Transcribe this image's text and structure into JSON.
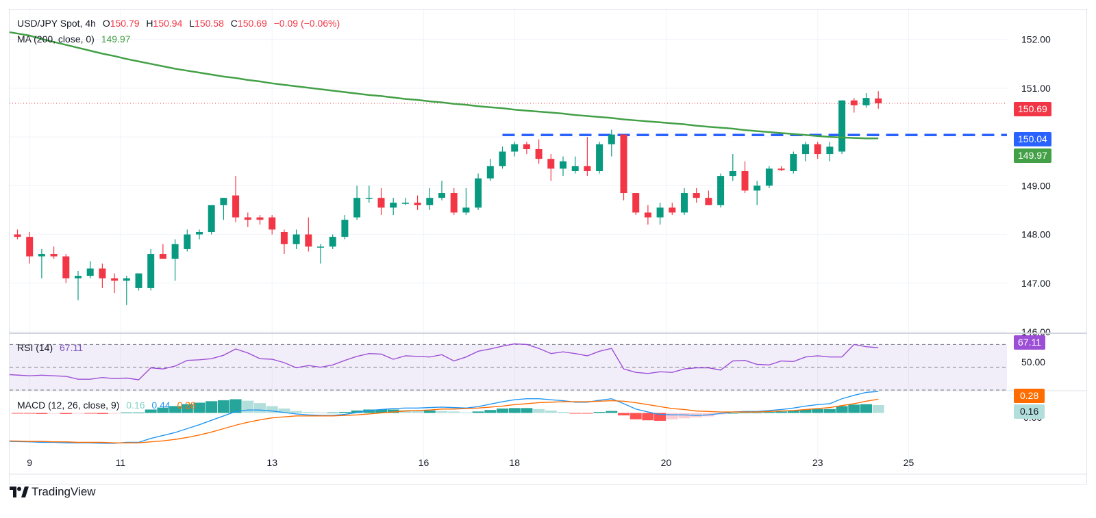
{
  "header": {
    "symbol": "USD/JPY Spot, 4h",
    "o_label": "O",
    "o_value": "150.79",
    "h_label": "H",
    "h_value": "150.94",
    "l_label": "L",
    "l_value": "150.58",
    "c_label": "C",
    "c_value": "150.69",
    "change": "−0.09 (−0.06%)",
    "ma_label": "MA (200, close, 0)",
    "ma_value": "149.97"
  },
  "rsi_legend": {
    "label": "RSI (14)",
    "value": "67.11"
  },
  "macd_legend": {
    "label": "MACD (12, 26, close, 9)",
    "hist": "0.16",
    "macd": "0.44",
    "signal": "0.28"
  },
  "price_tags": {
    "last": "150.69",
    "level": "150.04",
    "ma": "149.97",
    "rsi": "67.11",
    "rsi_mid": "50.00",
    "macd_signal": "0.28",
    "macd_hist": "0.16",
    "macd_zero": "0.00"
  },
  "brand": {
    "name": "TradingView"
  },
  "colors": {
    "up": "#089981",
    "down": "#f23645",
    "ma": "#43a047",
    "level": "#2962ff",
    "rsi": "#9c4fd6",
    "macd": "#2196f3",
    "signal": "#ff6d00"
  },
  "chart_data": {
    "type": "candlestick",
    "ylim": [
      146.0,
      152.6
    ],
    "y_ticks": [
      "146.00",
      "147.00",
      "148.00",
      "149.00",
      "150.00",
      "151.00",
      "152.00"
    ],
    "x_ticks": [
      {
        "label": "9",
        "index": 1
      },
      {
        "label": "11",
        "index": 8.5
      },
      {
        "label": "13",
        "index": 21
      },
      {
        "label": "16",
        "index": 33.5
      },
      {
        "label": "18",
        "index": 41
      },
      {
        "label": "20",
        "index": 53.5
      },
      {
        "label": "23",
        "index": 66
      },
      {
        "label": "25",
        "index": 73.5
      }
    ],
    "candles": [
      [
        148.0,
        148.1,
        147.9,
        147.95
      ],
      [
        147.95,
        148.05,
        147.4,
        147.55
      ],
      [
        147.55,
        147.7,
        147.1,
        147.6
      ],
      [
        147.6,
        147.75,
        147.5,
        147.55
      ],
      [
        147.55,
        147.6,
        147.0,
        147.1
      ],
      [
        147.1,
        147.25,
        146.65,
        147.15
      ],
      [
        147.15,
        147.45,
        147.1,
        147.3
      ],
      [
        147.3,
        147.4,
        146.9,
        147.1
      ],
      [
        147.1,
        147.2,
        146.8,
        147.05
      ],
      [
        147.05,
        147.15,
        146.55,
        147.1
      ],
      [
        146.9,
        147.2,
        146.85,
        147.2
      ],
      [
        146.9,
        147.7,
        146.85,
        147.6
      ],
      [
        147.6,
        147.8,
        147.5,
        147.5
      ],
      [
        147.5,
        147.9,
        147.05,
        147.8
      ],
      [
        147.7,
        148.1,
        147.65,
        148.0
      ],
      [
        148.0,
        148.1,
        147.9,
        148.05
      ],
      [
        148.05,
        148.6,
        148.0,
        148.6
      ],
      [
        148.6,
        148.75,
        148.3,
        148.75
      ],
      [
        148.8,
        149.2,
        148.25,
        148.35
      ],
      [
        148.35,
        148.45,
        148.15,
        148.3
      ],
      [
        148.35,
        148.4,
        148.2,
        148.3
      ],
      [
        148.35,
        148.4,
        148.0,
        148.1
      ],
      [
        148.05,
        148.1,
        147.6,
        147.8
      ],
      [
        147.8,
        148.1,
        147.7,
        148.0
      ],
      [
        148.0,
        148.35,
        147.65,
        147.75
      ],
      [
        147.75,
        147.8,
        147.4,
        147.75
      ],
      [
        147.75,
        148.0,
        147.7,
        147.95
      ],
      [
        147.95,
        148.4,
        147.9,
        148.3
      ],
      [
        148.35,
        149.0,
        148.3,
        148.75
      ],
      [
        148.75,
        149.0,
        148.65,
        148.75
      ],
      [
        148.75,
        148.95,
        148.4,
        148.55
      ],
      [
        148.55,
        148.75,
        148.4,
        148.65
      ],
      [
        148.65,
        148.75,
        148.6,
        148.65
      ],
      [
        148.65,
        148.8,
        148.5,
        148.6
      ],
      [
        148.6,
        148.95,
        148.5,
        148.75
      ],
      [
        148.75,
        149.1,
        148.7,
        148.85
      ],
      [
        148.85,
        148.95,
        148.4,
        148.45
      ],
      [
        148.45,
        148.95,
        148.4,
        148.55
      ],
      [
        148.55,
        149.25,
        148.5,
        149.15
      ],
      [
        149.15,
        149.55,
        149.1,
        149.4
      ],
      [
        149.4,
        149.8,
        149.35,
        149.7
      ],
      [
        149.7,
        149.9,
        149.6,
        149.85
      ],
      [
        149.85,
        149.9,
        149.65,
        149.75
      ],
      [
        149.75,
        149.95,
        149.45,
        149.55
      ],
      [
        149.55,
        149.65,
        149.1,
        149.35
      ],
      [
        149.35,
        149.6,
        149.2,
        149.5
      ],
      [
        149.3,
        149.6,
        149.25,
        149.4
      ],
      [
        149.4,
        150.0,
        149.2,
        149.3
      ],
      [
        149.3,
        149.9,
        149.25,
        149.85
      ],
      [
        149.85,
        150.15,
        149.6,
        150.05
      ],
      [
        150.05,
        150.05,
        148.7,
        148.85
      ],
      [
        148.85,
        148.85,
        148.4,
        148.45
      ],
      [
        148.45,
        148.6,
        148.2,
        148.35
      ],
      [
        148.35,
        148.65,
        148.2,
        148.55
      ],
      [
        148.55,
        148.65,
        148.4,
        148.45
      ],
      [
        148.45,
        148.95,
        148.4,
        148.85
      ],
      [
        148.85,
        148.95,
        148.65,
        148.75
      ],
      [
        148.75,
        148.9,
        148.6,
        148.6
      ],
      [
        148.6,
        149.25,
        148.55,
        149.2
      ],
      [
        149.2,
        149.65,
        149.1,
        149.3
      ],
      [
        149.3,
        149.5,
        148.85,
        148.9
      ],
      [
        148.9,
        149.1,
        148.6,
        149.0
      ],
      [
        149.0,
        149.4,
        148.95,
        149.35
      ],
      [
        149.35,
        149.4,
        149.3,
        149.32
      ],
      [
        149.3,
        149.7,
        149.25,
        149.65
      ],
      [
        149.65,
        149.9,
        149.5,
        149.85
      ],
      [
        149.85,
        149.9,
        149.55,
        149.65
      ],
      [
        149.65,
        149.9,
        149.5,
        149.8
      ],
      [
        149.7,
        150.75,
        149.65,
        150.75
      ],
      [
        150.75,
        150.8,
        150.5,
        150.65
      ],
      [
        150.65,
        150.9,
        150.6,
        150.8
      ],
      [
        150.79,
        150.94,
        150.58,
        150.69
      ]
    ],
    "ma200": [
      152.15,
      152.08,
      152.01,
      151.95,
      151.89,
      151.83,
      151.77,
      151.71,
      151.66,
      151.6,
      151.55,
      151.5,
      151.45,
      151.4,
      151.36,
      151.32,
      151.28,
      151.24,
      151.21,
      151.17,
      151.14,
      151.1,
      151.07,
      151.04,
      151.01,
      150.98,
      150.95,
      150.92,
      150.89,
      150.86,
      150.84,
      150.81,
      150.78,
      150.76,
      150.73,
      150.71,
      150.68,
      150.66,
      150.63,
      150.61,
      150.59,
      150.56,
      150.54,
      150.52,
      150.5,
      150.48,
      150.45,
      150.43,
      150.41,
      150.39,
      150.36,
      150.34,
      150.32,
      150.3,
      150.28,
      150.26,
      150.23,
      150.21,
      150.19,
      150.17,
      150.14,
      150.12,
      150.1,
      150.08,
      150.06,
      150.04,
      150.02,
      150.0,
      149.99,
      149.98,
      149.97,
      149.97
    ],
    "ma_plotted_until": 71,
    "resistance_level": 150.04,
    "resistance_from_index": 40,
    "rsi": {
      "ylim": [
        30,
        78
      ],
      "levels": [
        70,
        50,
        30
      ],
      "values": [
        43.5,
        42.5,
        43.0,
        42.5,
        42.0,
        39.5,
        39.5,
        41.0,
        40.0,
        40.5,
        39.0,
        49.5,
        48.5,
        51.0,
        56.0,
        56.5,
        57.5,
        60.5,
        66.0,
        62.5,
        57.5,
        57.0,
        54.0,
        49.5,
        51.5,
        50.0,
        52.0,
        56.0,
        59.5,
        62.0,
        61.5,
        57.0,
        60.0,
        59.5,
        59.0,
        61.0,
        55.5,
        59.0,
        64.0,
        66.0,
        68.5,
        70.5,
        70.0,
        66.5,
        62.0,
        63.5,
        62.0,
        60.0,
        64.0,
        66.5,
        48.5,
        45.5,
        44.5,
        46.0,
        45.5,
        48.5,
        49.5,
        49.5,
        47.5,
        55.5,
        56.0,
        52.5,
        52.0,
        55.5,
        55.0,
        59.0,
        60.0,
        59.0,
        59.0,
        70.0,
        68.0,
        67.11
      ]
    },
    "macd": {
      "ylim": [
        -0.65,
        0.44
      ],
      "macd": [
        -0.58,
        -0.59,
        -0.6,
        -0.6,
        -0.61,
        -0.61,
        -0.61,
        -0.62,
        -0.62,
        -0.6,
        -0.6,
        -0.52,
        -0.46,
        -0.4,
        -0.32,
        -0.24,
        -0.15,
        -0.06,
        0.03,
        0.06,
        0.06,
        0.04,
        0.01,
        -0.02,
        -0.04,
        -0.05,
        -0.05,
        -0.03,
        0.01,
        0.05,
        0.07,
        0.09,
        0.1,
        0.1,
        0.11,
        0.12,
        0.11,
        0.1,
        0.13,
        0.18,
        0.23,
        0.27,
        0.29,
        0.29,
        0.27,
        0.25,
        0.22,
        0.22,
        0.26,
        0.29,
        0.19,
        0.08,
        0.02,
        -0.03,
        -0.04,
        -0.04,
        -0.05,
        -0.04,
        -0.01,
        0.02,
        0.03,
        0.03,
        0.05,
        0.07,
        0.1,
        0.14,
        0.17,
        0.19,
        0.29,
        0.36,
        0.42,
        0.44
      ],
      "signal": [
        -0.57,
        -0.58,
        -0.58,
        -0.59,
        -0.59,
        -0.6,
        -0.6,
        -0.6,
        -0.61,
        -0.61,
        -0.61,
        -0.59,
        -0.57,
        -0.54,
        -0.5,
        -0.45,
        -0.39,
        -0.32,
        -0.25,
        -0.19,
        -0.14,
        -0.1,
        -0.08,
        -0.06,
        -0.06,
        -0.06,
        -0.06,
        -0.05,
        -0.04,
        -0.02,
        0.0,
        0.02,
        0.04,
        0.05,
        0.06,
        0.08,
        0.08,
        0.09,
        0.1,
        0.12,
        0.14,
        0.17,
        0.19,
        0.21,
        0.22,
        0.23,
        0.23,
        0.23,
        0.24,
        0.25,
        0.24,
        0.21,
        0.17,
        0.13,
        0.09,
        0.07,
        0.04,
        0.03,
        0.02,
        0.02,
        0.02,
        0.02,
        0.03,
        0.04,
        0.05,
        0.07,
        0.09,
        0.11,
        0.15,
        0.19,
        0.24,
        0.28
      ],
      "hist": [
        -0.01,
        -0.01,
        -0.02,
        -0.01,
        -0.02,
        -0.01,
        -0.01,
        -0.02,
        -0.01,
        0.01,
        0.01,
        0.07,
        0.11,
        0.14,
        0.18,
        0.21,
        0.24,
        0.26,
        0.28,
        0.25,
        0.2,
        0.14,
        0.09,
        0.04,
        0.02,
        0.01,
        0.01,
        0.02,
        0.05,
        0.07,
        0.07,
        0.07,
        0.06,
        0.05,
        0.05,
        0.04,
        0.03,
        0.01,
        0.03,
        0.06,
        0.09,
        0.1,
        0.1,
        0.08,
        0.05,
        0.02,
        -0.01,
        -0.01,
        0.02,
        0.04,
        -0.05,
        -0.13,
        -0.15,
        -0.16,
        -0.13,
        -0.11,
        -0.09,
        -0.07,
        -0.03,
        0.0,
        0.01,
        0.01,
        0.02,
        0.03,
        0.05,
        0.07,
        0.08,
        0.08,
        0.14,
        0.17,
        0.18,
        0.16
      ]
    }
  }
}
